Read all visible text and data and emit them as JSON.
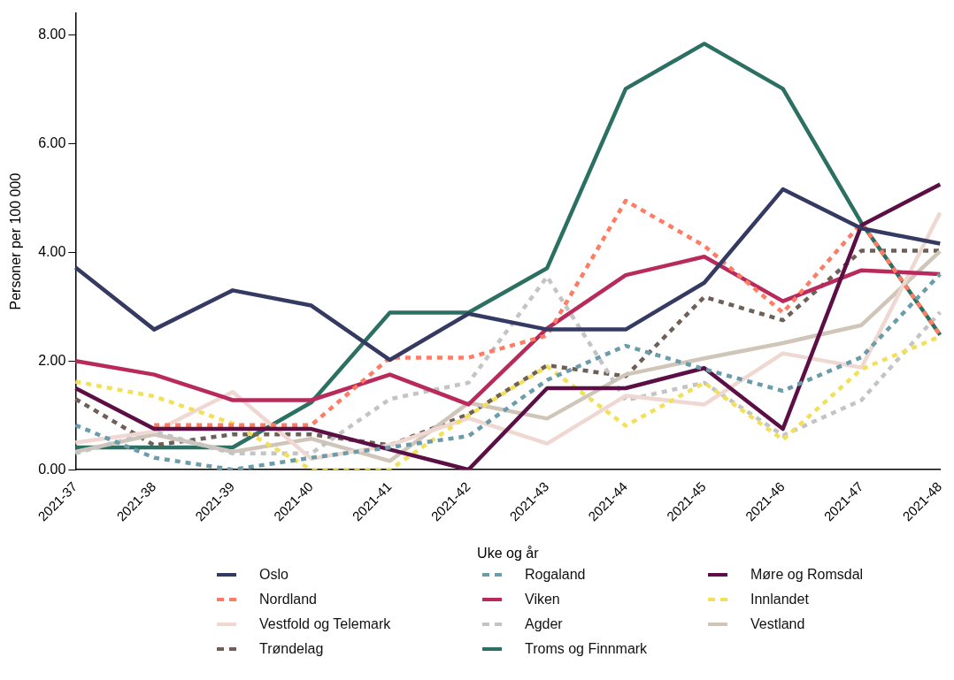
{
  "chart_data": {
    "type": "line",
    "xlabel": "Uke og år",
    "ylabel": "Personer per 100 000",
    "categories": [
      "2021-37",
      "2021-38",
      "2021-39",
      "2021-40",
      "2021-41",
      "2021-42",
      "2021-43",
      "2021-44",
      "2021-45",
      "2021-46",
      "2021-47",
      "2021-48"
    ],
    "ylim": [
      0,
      8.4
    ],
    "yticks": [
      {
        "value": 0,
        "label": "0.00"
      },
      {
        "value": 2,
        "label": "2.00"
      },
      {
        "value": 4,
        "label": "4.00"
      },
      {
        "value": 6,
        "label": "6.00"
      },
      {
        "value": 8,
        "label": "8.00"
      }
    ],
    "grid": false,
    "legend": "bottom",
    "marker": "none",
    "series": [
      {
        "name": "Oslo",
        "color": "#353a62",
        "line_style": "solid",
        "values": [
          3.72,
          2.58,
          3.3,
          3.02,
          2.02,
          2.87,
          2.58,
          2.58,
          3.44,
          5.16,
          4.44,
          4.16
        ]
      },
      {
        "name": "Rogaland",
        "color": "#6b9caa",
        "line_style": "dotted",
        "values": [
          0.82,
          0.22,
          0,
          0.22,
          0.41,
          0.62,
          1.65,
          2.28,
          1.85,
          1.45,
          2.07,
          3.6
        ]
      },
      {
        "name": "Møre og Romsdal",
        "color": "#5c0f45",
        "line_style": "solid",
        "values": [
          1.5,
          0.75,
          0.75,
          0.75,
          0.37,
          0,
          1.5,
          1.5,
          1.87,
          0.75,
          4.5,
          5.25
        ]
      },
      {
        "name": "Nordland",
        "color": "#ff7b64",
        "line_style": "dotted",
        "values": [
          null,
          0.82,
          0.82,
          0.82,
          2.06,
          2.06,
          2.47,
          4.95,
          4.12,
          2.89,
          4.54,
          2.48
        ]
      },
      {
        "name": "Viken",
        "color": "#b82a5b",
        "line_style": "solid",
        "values": [
          2,
          1.75,
          1.28,
          1.28,
          1.75,
          1.2,
          2.6,
          3.58,
          3.92,
          3.1,
          3.67,
          3.6
        ]
      },
      {
        "name": "Innlandet",
        "color": "#f3e05a",
        "line_style": "dotted",
        "values": [
          1.62,
          1.35,
          0.85,
          0,
          0,
          1,
          1.9,
          0.81,
          1.6,
          0.55,
          1.85,
          2.45
        ]
      },
      {
        "name": "Vestfold og Telemark",
        "color": "#f0d8d2",
        "line_style": "solid",
        "values": [
          0.5,
          0.7,
          1.43,
          0.2,
          0.45,
          0.95,
          0.48,
          1.36,
          1.2,
          2.14,
          1.88,
          4.73
        ]
      },
      {
        "name": "Agder",
        "color": "#c4c4c4",
        "line_style": "dotted",
        "values": [
          0.3,
          0.7,
          0.3,
          0.3,
          1.3,
          1.6,
          3.55,
          1.28,
          1.6,
          0.63,
          1.28,
          2.9
        ]
      },
      {
        "name": "Vestland",
        "color": "#cfc5b8",
        "line_style": "solid",
        "values": [
          0.33,
          0.65,
          0.33,
          0.57,
          0.16,
          1.23,
          0.94,
          1.75,
          2.05,
          2.33,
          2.66,
          4.02
        ]
      },
      {
        "name": "Trøndelag",
        "color": "#6e5f57",
        "line_style": "dotted",
        "values": [
          1.3,
          0.45,
          0.65,
          0.65,
          0.45,
          1.02,
          1.92,
          1.72,
          3.18,
          2.75,
          4.03,
          4.03
        ]
      },
      {
        "name": "Troms og Finnmark",
        "color": "#2b7062",
        "line_style": "solid",
        "values": [
          0.41,
          0.41,
          0.41,
          1.24,
          2.89,
          2.89,
          3.71,
          7.01,
          7.84,
          7.01,
          4.54,
          2.48
        ]
      }
    ]
  }
}
